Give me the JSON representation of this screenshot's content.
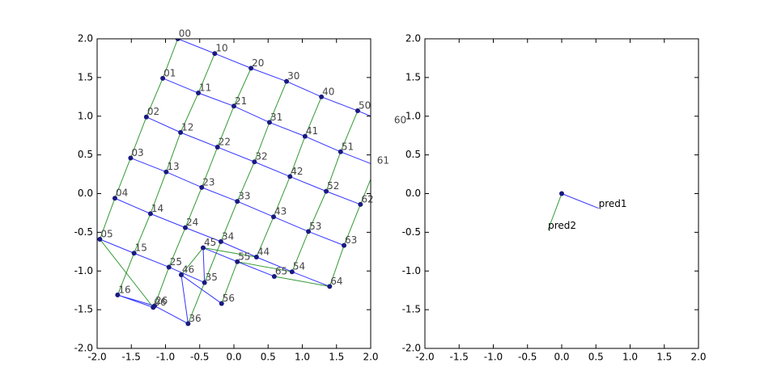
{
  "chart_data": [
    {
      "type": "lattice",
      "xlim": [
        -2,
        2
      ],
      "ylim": [
        -2,
        2
      ],
      "xticks": [
        {
          "value": -2,
          "label": "-2.0"
        },
        {
          "value": -1.5,
          "label": "-1.5"
        },
        {
          "value": -1,
          "label": "-1.0"
        },
        {
          "value": -0.5,
          "label": "-0.5"
        },
        {
          "value": 0,
          "label": "0.0"
        },
        {
          "value": 0.5,
          "label": "0.5"
        },
        {
          "value": 1,
          "label": "1.0"
        },
        {
          "value": 1.5,
          "label": "1.5"
        },
        {
          "value": 2,
          "label": "2.0"
        }
      ],
      "yticks": [
        {
          "value": -2,
          "label": "-2.0"
        },
        {
          "value": -1.5,
          "label": "-1.5"
        },
        {
          "value": -1,
          "label": "-1.0"
        },
        {
          "value": -0.5,
          "label": "-0.5"
        },
        {
          "value": 0,
          "label": "0.0"
        },
        {
          "value": 0.5,
          "label": "0.5"
        },
        {
          "value": 1,
          "label": "1.0"
        },
        {
          "value": 1.5,
          "label": "1.5"
        },
        {
          "value": 2,
          "label": "2.0"
        }
      ],
      "row_color": "#0000ff",
      "column_color": "#008000",
      "marker_color": "#1a1a80",
      "rows": [
        {
          "labels": [
            "00",
            "10",
            "20",
            "30",
            "40",
            "50",
            "60"
          ],
          "x": [
            -0.82,
            -0.28,
            0.25,
            0.77,
            1.28,
            1.81,
            2.33
          ],
          "y": [
            2.0,
            1.81,
            1.62,
            1.45,
            1.25,
            1.07,
            0.88
          ]
        },
        {
          "labels": [
            "01",
            "11",
            "21",
            "31",
            "41",
            "51",
            "61"
          ],
          "x": [
            -1.04,
            -0.52,
            0.0,
            0.52,
            1.04,
            1.56,
            2.08
          ],
          "y": [
            1.49,
            1.3,
            1.13,
            0.92,
            0.74,
            0.54,
            0.36
          ]
        },
        {
          "labels": [
            "02",
            "12",
            "22",
            "32",
            "42",
            "52",
            "62"
          ],
          "x": [
            -1.28,
            -0.78,
            -0.24,
            0.3,
            0.82,
            1.35,
            1.85
          ],
          "y": [
            0.99,
            0.79,
            0.6,
            0.41,
            0.22,
            0.03,
            -0.14
          ]
        },
        {
          "labels": [
            "03",
            "13",
            "23",
            "33",
            "43",
            "53",
            "63"
          ],
          "x": [
            -1.51,
            -0.99,
            -0.47,
            0.05,
            0.58,
            1.09,
            1.61
          ],
          "y": [
            0.46,
            0.28,
            0.08,
            -0.1,
            -0.3,
            -0.49,
            -0.67
          ]
        },
        {
          "labels": [
            "04",
            "14",
            "24",
            "34",
            "44",
            "54",
            "64"
          ],
          "x": [
            -1.74,
            -1.22,
            -0.71,
            -0.19,
            0.33,
            0.85,
            1.4
          ],
          "y": [
            -0.06,
            -0.26,
            -0.44,
            -0.62,
            -0.82,
            -1.01,
            -1.2
          ]
        },
        {
          "labels": [
            "05",
            "15",
            "25",
            "35",
            "45",
            "55",
            "65"
          ],
          "x": [
            -1.96,
            -1.46,
            -0.95,
            -0.43,
            -0.45,
            0.05,
            0.59
          ],
          "y": [
            -0.59,
            -0.77,
            -0.95,
            -1.15,
            -0.7,
            -0.88,
            -1.07
          ]
        },
        {
          "labels": [
            "06",
            "16",
            "26",
            "36",
            "46",
            "56",
            null
          ],
          "x": [
            -1.18,
            -1.7,
            -1.16,
            -0.67,
            -0.77,
            -0.18,
            null
          ],
          "y": [
            -1.47,
            -1.31,
            -1.45,
            -1.68,
            -1.05,
            -1.42,
            null
          ]
        }
      ]
    },
    {
      "type": "vectors",
      "xlim": [
        -2,
        2
      ],
      "ylim": [
        -2,
        2
      ],
      "xticks": [
        {
          "value": -2,
          "label": "-2.0"
        },
        {
          "value": -1.5,
          "label": "-1.5"
        },
        {
          "value": -1,
          "label": "-1.0"
        },
        {
          "value": -0.5,
          "label": "-0.5"
        },
        {
          "value": 0,
          "label": "0.0"
        },
        {
          "value": 0.5,
          "label": "0.5"
        },
        {
          "value": 1,
          "label": "1.0"
        },
        {
          "value": 1.5,
          "label": "1.5"
        },
        {
          "value": 2,
          "label": "2.0"
        }
      ],
      "yticks": [
        {
          "value": -2,
          "label": "-2.0"
        },
        {
          "value": -1.5,
          "label": "-1.5"
        },
        {
          "value": -1,
          "label": "-1.0"
        },
        {
          "value": -0.5,
          "label": "-0.5"
        },
        {
          "value": 0,
          "label": "0.0"
        },
        {
          "value": 0.5,
          "label": "0.5"
        },
        {
          "value": 1,
          "label": "1.0"
        },
        {
          "value": 1.5,
          "label": "1.5"
        },
        {
          "value": 2,
          "label": "2.0"
        }
      ],
      "origin": {
        "x": 0,
        "y": 0
      },
      "marker_color": "#1a1a80",
      "vectors": [
        {
          "name": "pred1",
          "x": 0.54,
          "y": -0.19,
          "color": "#0000ff"
        },
        {
          "name": "pred2",
          "x": -0.2,
          "y": -0.47,
          "color": "#008000"
        }
      ]
    }
  ]
}
